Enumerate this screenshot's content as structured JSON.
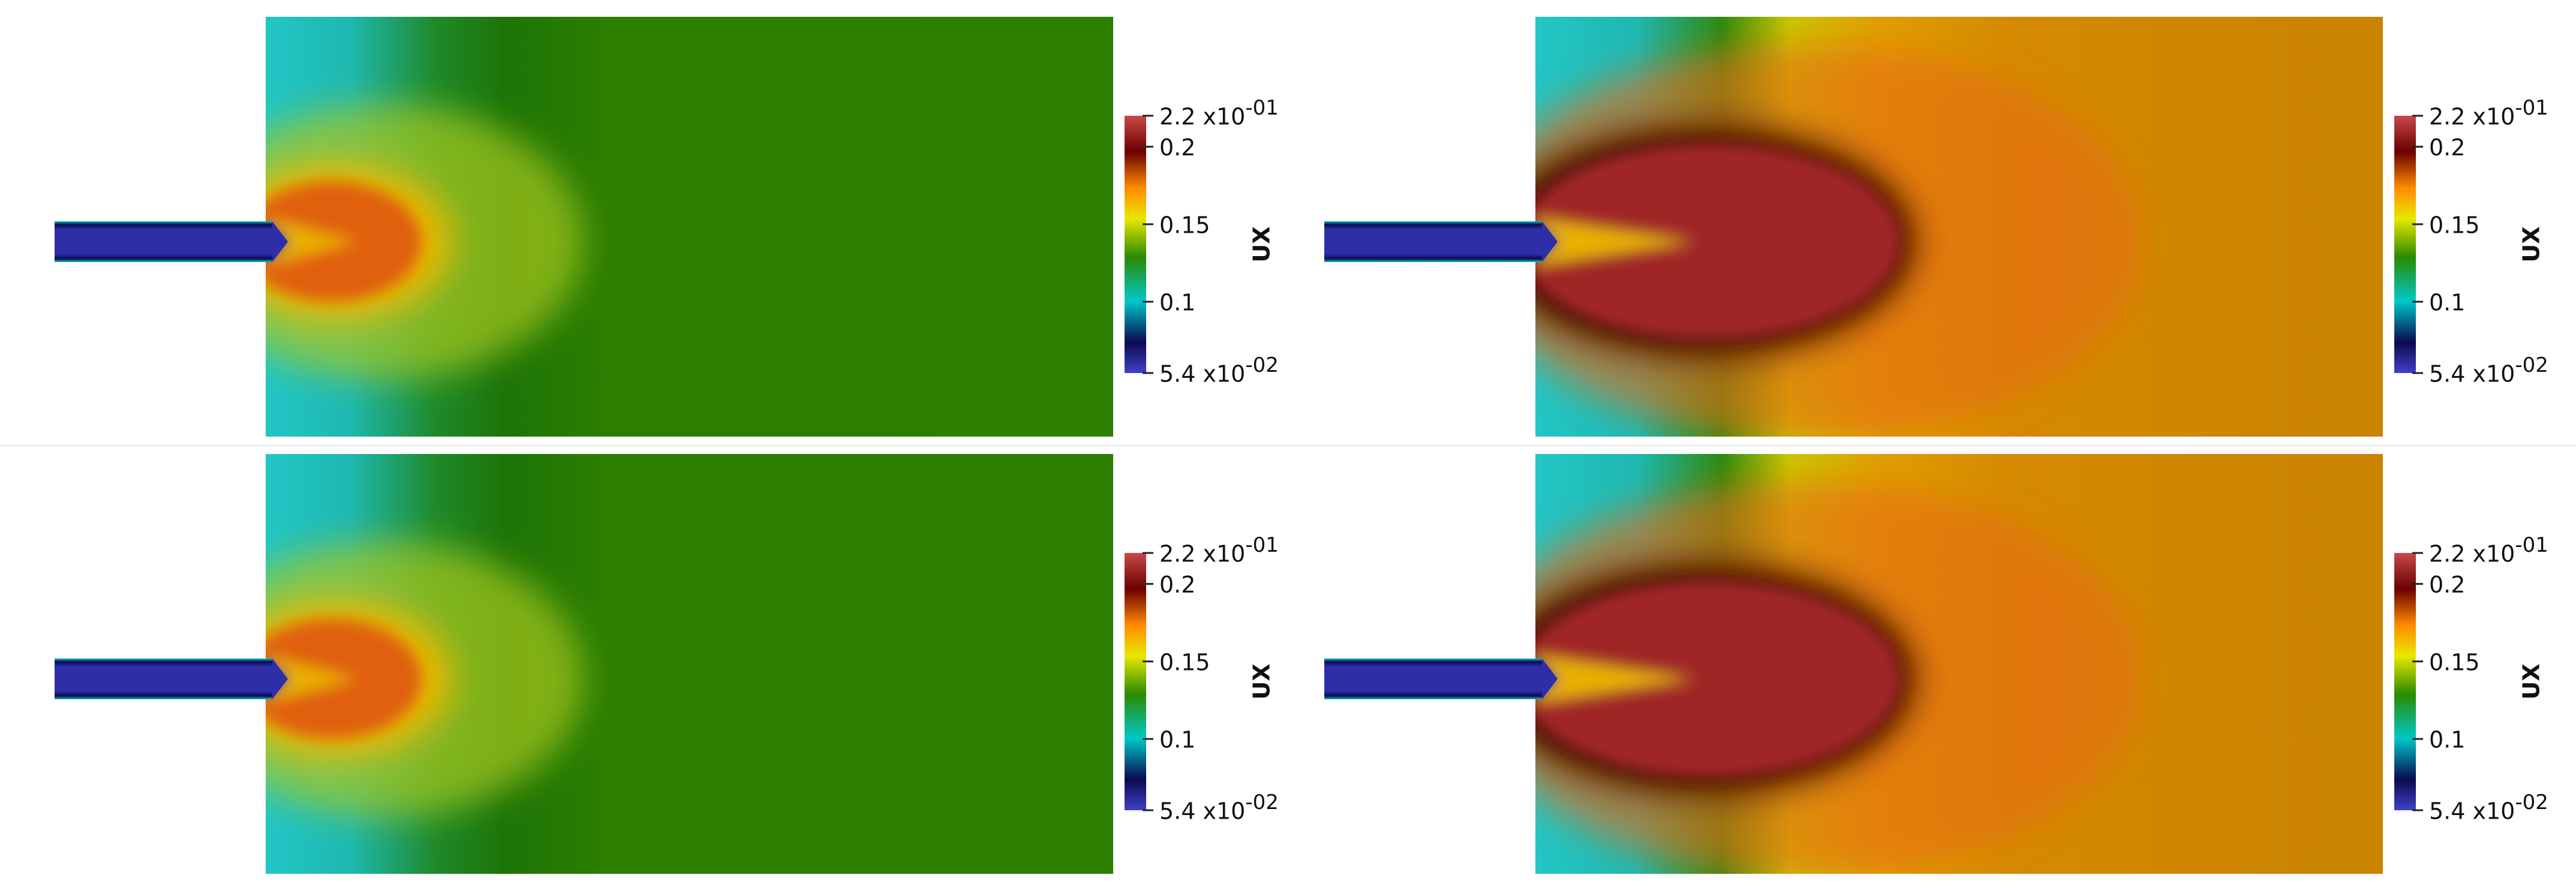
{
  "panels": [
    {
      "colorbar": {
        "title": "UX",
        "range": [
          0.054,
          0.22
        ],
        "ticks": [
          {
            "value": 0.22,
            "label": "2.2 x10",
            "exponent": "-01"
          },
          0.2,
          0.15,
          0.1,
          {
            "value": 0.054,
            "label": "5.4 x10",
            "exponent": "-02"
          }
        ]
      }
    },
    {
      "colorbar": {
        "title": "UX",
        "range": [
          0.054,
          0.22
        ],
        "ticks": [
          {
            "value": 0.22,
            "label": "2.2 x10",
            "exponent": "-01"
          },
          0.2,
          0.15,
          0.1,
          {
            "value": 0.054,
            "label": "5.4 x10",
            "exponent": "-02"
          }
        ]
      }
    },
    {
      "colorbar": {
        "title": "UX",
        "range": [
          0.054,
          0.22
        ],
        "ticks": [
          {
            "value": 0.22,
            "label": "2.2 x10",
            "exponent": "-01"
          },
          0.2,
          0.15,
          0.1,
          {
            "value": 0.054,
            "label": "5.4 x10",
            "exponent": "-02"
          }
        ]
      }
    },
    {
      "colorbar": {
        "title": "UX",
        "range": [
          0.054,
          0.22
        ],
        "ticks": [
          {
            "value": 0.22,
            "label": "2.2 x10",
            "exponent": "-01"
          },
          0.2,
          0.15,
          0.1,
          {
            "value": 0.054,
            "label": "5.4 x10",
            "exponent": "-02"
          }
        ]
      }
    }
  ]
}
